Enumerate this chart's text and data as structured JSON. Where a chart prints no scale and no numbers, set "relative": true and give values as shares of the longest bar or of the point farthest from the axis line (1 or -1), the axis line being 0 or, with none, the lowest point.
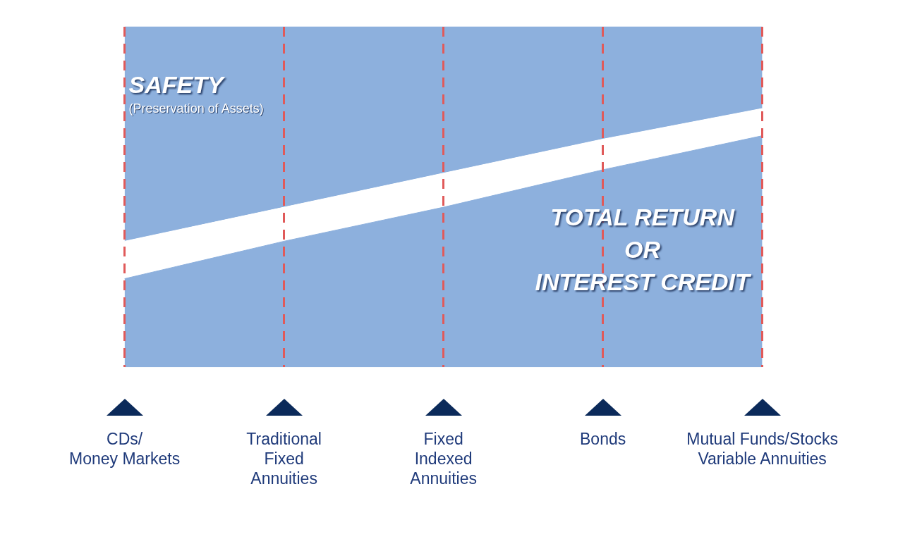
{
  "chart_data": {
    "type": "area",
    "stacked": true,
    "relative": true,
    "grid": "x",
    "legend": false,
    "categories": [
      "CDs/\nMoney Markets",
      "Traditional\nFixed\nAnnuities",
      "Fixed\nIndexed\nAnnuities",
      "Bonds",
      "Mutual Funds/Stocks\nVariable Annuities"
    ],
    "series": [
      {
        "name": "TOTAL RETURN\nOR\nINTEREST CREDIT",
        "color": "#8db0dd",
        "values": [
          0.26,
          0.37,
          0.47,
          0.58,
          0.68
        ]
      },
      {
        "color": "#ffffff",
        "values": [
          0.11,
          0.1,
          0.1,
          0.09,
          0.08
        ]
      },
      {
        "name": "SAFETY",
        "color": "#8db0dd",
        "values": [
          0.63,
          0.53,
          0.43,
          0.33,
          0.24
        ]
      }
    ],
    "annotations": [
      "(Preservation of Assets)"
    ]
  }
}
